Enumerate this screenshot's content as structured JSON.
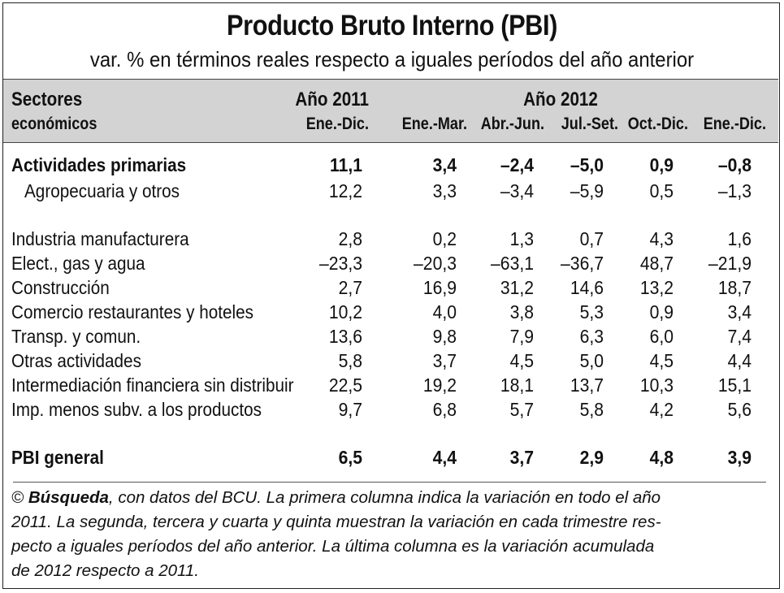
{
  "title": "Producto Bruto Interno (PBI)",
  "subtitle": "var. % en términos reales respecto a iguales períodos del año anterior",
  "header": {
    "sectores_line1": "Sectores",
    "sectores_line2": "económicos",
    "year_2011": "Año 2011",
    "year_2012": "Año 2012",
    "columns": [
      "Ene.-Dic.",
      "Ene.-Mar.",
      "Abr.-Jun.",
      "Jul.-Set.",
      "Oct.-Dic.",
      "Ene.-Dic."
    ]
  },
  "rows": [
    {
      "label": "Actividades primarias",
      "values": [
        "11,1",
        "3,4",
        "–2,4",
        "–5,0",
        "0,9",
        "–0,8"
      ]
    },
    {
      "label": "Agropecuaria y otros",
      "values": [
        "12,2",
        "3,3",
        "–3,4",
        "–5,9",
        "0,5",
        "–1,3"
      ]
    },
    {
      "label": "Industria manufacturera",
      "values": [
        "2,8",
        "0,2",
        "1,3",
        "0,7",
        "4,3",
        "1,6"
      ]
    },
    {
      "label": "Elect., gas y agua",
      "values": [
        "–23,3",
        "–20,3",
        "–63,1",
        "–36,7",
        "48,7",
        "–21,9"
      ]
    },
    {
      "label": "Construcción",
      "values": [
        "2,7",
        "16,9",
        "31,2",
        "14,6",
        "13,2",
        "18,7"
      ]
    },
    {
      "label": "Comercio restaurantes y hoteles",
      "values": [
        "10,2",
        "4,0",
        "3,8",
        "5,3",
        "0,9",
        "3,4"
      ]
    },
    {
      "label": "Transp. y comun.",
      "values": [
        "13,6",
        "9,8",
        "7,9",
        "6,3",
        "6,0",
        "7,4"
      ]
    },
    {
      "label": "Otras actividades",
      "values": [
        "5,8",
        "3,7",
        "4,5",
        "5,0",
        "4,5",
        "4,4"
      ]
    },
    {
      "label": "Intermediación financiera sin distribuir",
      "values": [
        "22,5",
        "19,2",
        "18,1",
        "13,7",
        "10,3",
        "15,1"
      ]
    },
    {
      "label": "Imp. menos subv. a los productos",
      "values": [
        "9,7",
        "6,8",
        "5,7",
        "5,8",
        "4,2",
        "5,6"
      ]
    },
    {
      "label": "PBI general",
      "values": [
        "6,5",
        "4,4",
        "3,7",
        "2,9",
        "4,8",
        "3,9"
      ]
    }
  ],
  "note": {
    "copyright": "©",
    "brand": "Búsqueda",
    "line1_rest": ", con datos del BCU. La primera columna indica la variación en todo el año",
    "line2": "2011. La segunda, tercera y cuarta y quinta muestran la variación en cada trimestre res-",
    "line3": "pecto a iguales períodos del año anterior. La última columna es la variación acumulada",
    "line4": "de 2012 respecto a 2011."
  }
}
